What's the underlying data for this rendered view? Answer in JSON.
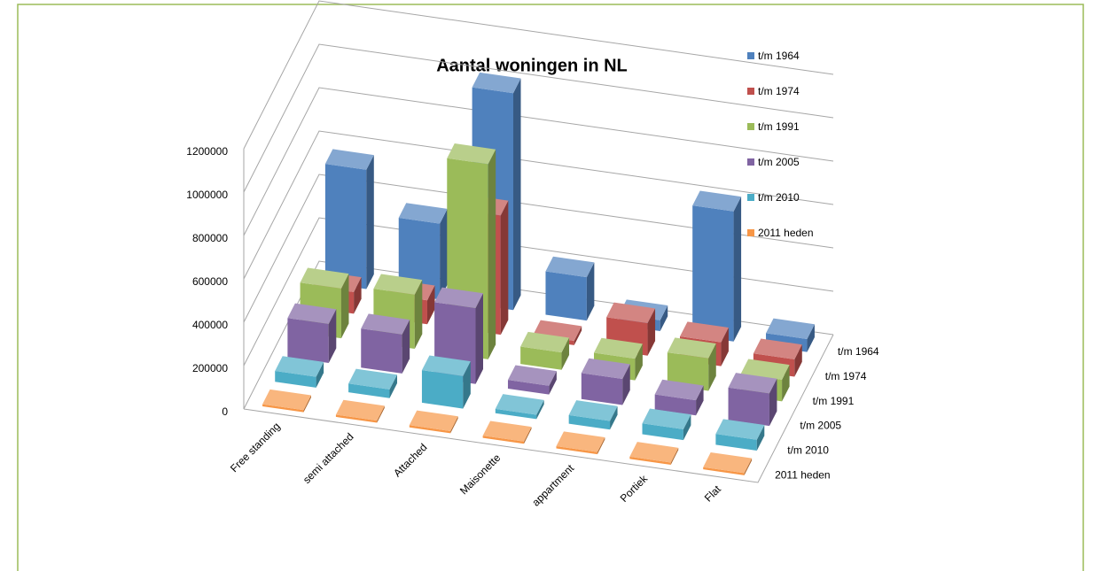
{
  "chart_data": {
    "type": "bar3d",
    "title": "Aantal woningen in NL",
    "categories": [
      "Free standing",
      "semi attached",
      "Attached",
      "Maisonette",
      "appartment",
      "Portiek",
      "Flat"
    ],
    "series": [
      {
        "name": "t/m 1964",
        "color": "#4f81bd",
        "values": [
          550000,
          350000,
          1000000,
          200000,
          50000,
          600000,
          60000
        ]
      },
      {
        "name": "t/m 1974",
        "color": "#c0504d",
        "values": [
          100000,
          110000,
          550000,
          20000,
          150000,
          110000,
          80000
        ]
      },
      {
        "name": "t/m 1991",
        "color": "#9bbb59",
        "values": [
          230000,
          250000,
          900000,
          80000,
          100000,
          150000,
          100000
        ]
      },
      {
        "name": "t/m 2005",
        "color": "#8064a2",
        "values": [
          180000,
          180000,
          350000,
          40000,
          120000,
          70000,
          150000
        ]
      },
      {
        "name": "t/m 2010",
        "color": "#4bacc6",
        "values": [
          50000,
          40000,
          150000,
          20000,
          40000,
          50000,
          50000
        ]
      },
      {
        "name": "2011 heden",
        "color": "#f79646",
        "values": [
          10000,
          10000,
          10000,
          10000,
          10000,
          10000,
          10000
        ]
      }
    ],
    "zlim": [
      0,
      1200000
    ],
    "zticks": [
      0,
      200000,
      400000,
      600000,
      800000,
      1000000,
      1200000
    ],
    "grid": true
  }
}
